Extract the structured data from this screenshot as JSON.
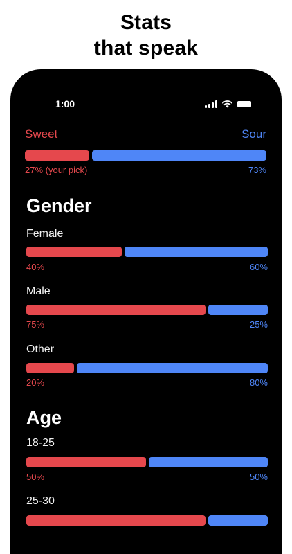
{
  "headline": {
    "line1": "Stats",
    "line2": "that speak"
  },
  "status_bar": {
    "time": "1:00",
    "icons": [
      "signal-icon",
      "wifi-icon",
      "battery-icon"
    ]
  },
  "colors": {
    "sweet": "#e5484d",
    "sour": "#4f86f7",
    "background": "#000000"
  },
  "overall": {
    "left_label": "Sweet",
    "right_label": "Sour",
    "left_pct": 27,
    "right_pct": 73,
    "left_text": "27% (your pick)",
    "right_text": "73%"
  },
  "sections": [
    {
      "title": "Gender",
      "groups": [
        {
          "label": "Female",
          "left_pct": 40,
          "right_pct": 60,
          "left_text": "40%",
          "right_text": "60%"
        },
        {
          "label": "Male",
          "left_pct": 75,
          "right_pct": 25,
          "left_text": "75%",
          "right_text": "25%"
        },
        {
          "label": "Other",
          "left_pct": 20,
          "right_pct": 80,
          "left_text": "20%",
          "right_text": "80%"
        }
      ]
    },
    {
      "title": "Age",
      "groups": [
        {
          "label": "18-25",
          "left_pct": 50,
          "right_pct": 50,
          "left_text": "50%",
          "right_text": "50%"
        },
        {
          "label": "25-30",
          "left_pct": 75,
          "right_pct": 25,
          "left_text": "",
          "right_text": ""
        }
      ]
    }
  ]
}
